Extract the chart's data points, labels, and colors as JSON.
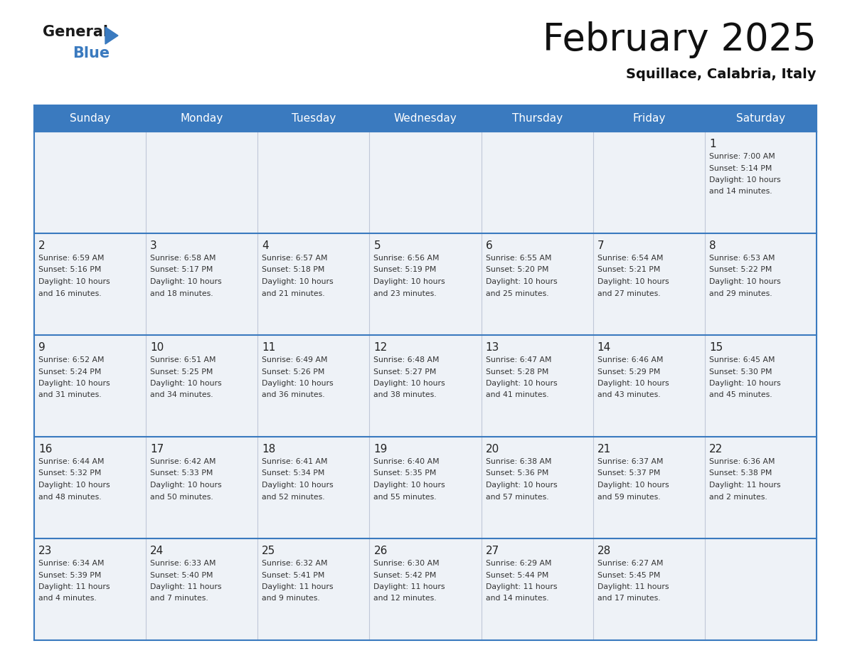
{
  "title": "February 2025",
  "subtitle": "Squillace, Calabria, Italy",
  "header_bg": "#3a7abf",
  "header_text_color": "#ffffff",
  "cell_bg": "#eef2f7",
  "border_color": "#3a7abf",
  "divider_color": "#c0c8d8",
  "day_headers": [
    "Sunday",
    "Monday",
    "Tuesday",
    "Wednesday",
    "Thursday",
    "Friday",
    "Saturday"
  ],
  "days": [
    {
      "day": 1,
      "col": 6,
      "row": 0,
      "sunrise": "7:00 AM",
      "sunset": "5:14 PM",
      "daylight": "10 hours and 14 minutes."
    },
    {
      "day": 2,
      "col": 0,
      "row": 1,
      "sunrise": "6:59 AM",
      "sunset": "5:16 PM",
      "daylight": "10 hours and 16 minutes."
    },
    {
      "day": 3,
      "col": 1,
      "row": 1,
      "sunrise": "6:58 AM",
      "sunset": "5:17 PM",
      "daylight": "10 hours and 18 minutes."
    },
    {
      "day": 4,
      "col": 2,
      "row": 1,
      "sunrise": "6:57 AM",
      "sunset": "5:18 PM",
      "daylight": "10 hours and 21 minutes."
    },
    {
      "day": 5,
      "col": 3,
      "row": 1,
      "sunrise": "6:56 AM",
      "sunset": "5:19 PM",
      "daylight": "10 hours and 23 minutes."
    },
    {
      "day": 6,
      "col": 4,
      "row": 1,
      "sunrise": "6:55 AM",
      "sunset": "5:20 PM",
      "daylight": "10 hours and 25 minutes."
    },
    {
      "day": 7,
      "col": 5,
      "row": 1,
      "sunrise": "6:54 AM",
      "sunset": "5:21 PM",
      "daylight": "10 hours and 27 minutes."
    },
    {
      "day": 8,
      "col": 6,
      "row": 1,
      "sunrise": "6:53 AM",
      "sunset": "5:22 PM",
      "daylight": "10 hours and 29 minutes."
    },
    {
      "day": 9,
      "col": 0,
      "row": 2,
      "sunrise": "6:52 AM",
      "sunset": "5:24 PM",
      "daylight": "10 hours and 31 minutes."
    },
    {
      "day": 10,
      "col": 1,
      "row": 2,
      "sunrise": "6:51 AM",
      "sunset": "5:25 PM",
      "daylight": "10 hours and 34 minutes."
    },
    {
      "day": 11,
      "col": 2,
      "row": 2,
      "sunrise": "6:49 AM",
      "sunset": "5:26 PM",
      "daylight": "10 hours and 36 minutes."
    },
    {
      "day": 12,
      "col": 3,
      "row": 2,
      "sunrise": "6:48 AM",
      "sunset": "5:27 PM",
      "daylight": "10 hours and 38 minutes."
    },
    {
      "day": 13,
      "col": 4,
      "row": 2,
      "sunrise": "6:47 AM",
      "sunset": "5:28 PM",
      "daylight": "10 hours and 41 minutes."
    },
    {
      "day": 14,
      "col": 5,
      "row": 2,
      "sunrise": "6:46 AM",
      "sunset": "5:29 PM",
      "daylight": "10 hours and 43 minutes."
    },
    {
      "day": 15,
      "col": 6,
      "row": 2,
      "sunrise": "6:45 AM",
      "sunset": "5:30 PM",
      "daylight": "10 hours and 45 minutes."
    },
    {
      "day": 16,
      "col": 0,
      "row": 3,
      "sunrise": "6:44 AM",
      "sunset": "5:32 PM",
      "daylight": "10 hours and 48 minutes."
    },
    {
      "day": 17,
      "col": 1,
      "row": 3,
      "sunrise": "6:42 AM",
      "sunset": "5:33 PM",
      "daylight": "10 hours and 50 minutes."
    },
    {
      "day": 18,
      "col": 2,
      "row": 3,
      "sunrise": "6:41 AM",
      "sunset": "5:34 PM",
      "daylight": "10 hours and 52 minutes."
    },
    {
      "day": 19,
      "col": 3,
      "row": 3,
      "sunrise": "6:40 AM",
      "sunset": "5:35 PM",
      "daylight": "10 hours and 55 minutes."
    },
    {
      "day": 20,
      "col": 4,
      "row": 3,
      "sunrise": "6:38 AM",
      "sunset": "5:36 PM",
      "daylight": "10 hours and 57 minutes."
    },
    {
      "day": 21,
      "col": 5,
      "row": 3,
      "sunrise": "6:37 AM",
      "sunset": "5:37 PM",
      "daylight": "10 hours and 59 minutes."
    },
    {
      "day": 22,
      "col": 6,
      "row": 3,
      "sunrise": "6:36 AM",
      "sunset": "5:38 PM",
      "daylight": "11 hours and 2 minutes."
    },
    {
      "day": 23,
      "col": 0,
      "row": 4,
      "sunrise": "6:34 AM",
      "sunset": "5:39 PM",
      "daylight": "11 hours and 4 minutes."
    },
    {
      "day": 24,
      "col": 1,
      "row": 4,
      "sunrise": "6:33 AM",
      "sunset": "5:40 PM",
      "daylight": "11 hours and 7 minutes."
    },
    {
      "day": 25,
      "col": 2,
      "row": 4,
      "sunrise": "6:32 AM",
      "sunset": "5:41 PM",
      "daylight": "11 hours and 9 minutes."
    },
    {
      "day": 26,
      "col": 3,
      "row": 4,
      "sunrise": "6:30 AM",
      "sunset": "5:42 PM",
      "daylight": "11 hours and 12 minutes."
    },
    {
      "day": 27,
      "col": 4,
      "row": 4,
      "sunrise": "6:29 AM",
      "sunset": "5:44 PM",
      "daylight": "11 hours and 14 minutes."
    },
    {
      "day": 28,
      "col": 5,
      "row": 4,
      "sunrise": "6:27 AM",
      "sunset": "5:45 PM",
      "daylight": "11 hours and 17 minutes."
    }
  ],
  "logo_text_general": "General",
  "logo_text_blue": "Blue",
  "logo_color_general": "#1a1a1a",
  "logo_color_blue": "#3a7abf",
  "logo_triangle_color": "#3a7abf",
  "text_color": "#333333",
  "daynum_color": "#222222"
}
